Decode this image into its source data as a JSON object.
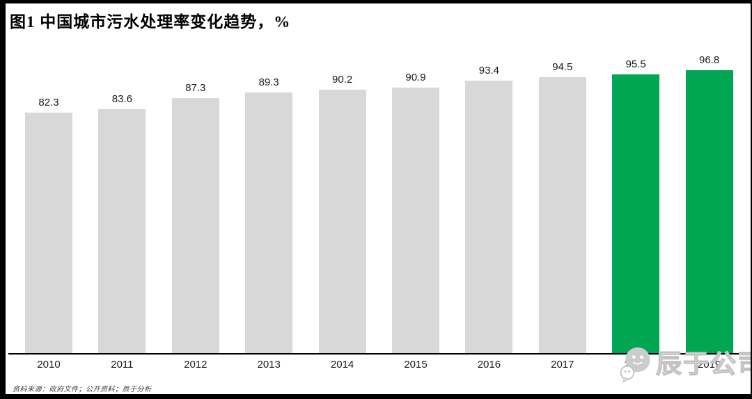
{
  "title": "图1 中国城市污水处理率变化趋势，%",
  "source_note": "资料来源：政府文件；公开资料；辰于分析",
  "watermark": {
    "icon": "wechat-bubbles-icon",
    "text": "辰于公司",
    "color": "#c2c2c2"
  },
  "colors": {
    "bar_default": "#d8d8d8",
    "bar_highlight": "#00a651",
    "axis": "#000000",
    "frame": "#000000",
    "label_text": "#1a1a1a"
  },
  "chart_data": {
    "type": "bar",
    "title": "图1 中国城市污水处理率变化趋势，%",
    "categories": [
      "2010",
      "2011",
      "2012",
      "2013",
      "2014",
      "2015",
      "2016",
      "2017",
      "2018",
      "2019"
    ],
    "values": [
      82.3,
      83.6,
      87.3,
      89.3,
      90.2,
      90.9,
      93.4,
      94.5,
      95.5,
      96.8
    ],
    "highlight_from_index": 8,
    "xlabel": "",
    "ylabel": "",
    "ylim": [
      0,
      100
    ],
    "grid": false,
    "legend": false,
    "value_labels": true
  }
}
